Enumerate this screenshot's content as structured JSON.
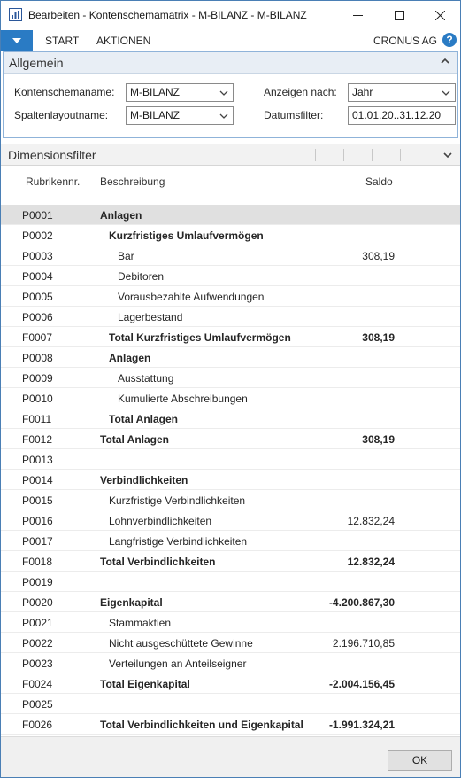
{
  "window": {
    "title": "Bearbeiten - Kontenschemamatrix - M-BILANZ - M-BILANZ"
  },
  "ribbon": {
    "tabs": [
      "START",
      "AKTIONEN"
    ],
    "company": "CRONUS AG",
    "help": "?"
  },
  "general": {
    "title": "Allgemein",
    "schema_label": "Kontenschemaname:",
    "schema_value": "M-BILANZ",
    "layout_label": "Spaltenlayoutname:",
    "layout_value": "M-BILANZ",
    "view_by_label": "Anzeigen nach:",
    "view_by_value": "Jahr",
    "date_filter_label": "Datumsfilter:",
    "date_filter_value": "01.01.20..31.12.20"
  },
  "dimension": {
    "title": "Dimensionsfilter"
  },
  "grid": {
    "headers": {
      "code": "Rubrikennr.",
      "desc": "Beschreibung",
      "amount": "Saldo"
    },
    "rows": [
      {
        "code": "P0001",
        "desc": "Anlagen",
        "amount": "",
        "indent": 0,
        "bold": true
      },
      {
        "code": "P0002",
        "desc": "Kurzfristiges Umlaufvermögen",
        "amount": "",
        "indent": 1,
        "bold": true
      },
      {
        "code": "P0003",
        "desc": "Bar",
        "amount": "308,19",
        "indent": 2,
        "bold": false
      },
      {
        "code": "P0004",
        "desc": "Debitoren",
        "amount": "",
        "indent": 2,
        "bold": false
      },
      {
        "code": "P0005",
        "desc": "Vorausbezahlte Aufwendungen",
        "amount": "",
        "indent": 2,
        "bold": false
      },
      {
        "code": "P0006",
        "desc": "Lagerbestand",
        "amount": "",
        "indent": 2,
        "bold": false
      },
      {
        "code": "F0007",
        "desc": "Total Kurzfristiges Umlaufvermögen",
        "amount": "308,19",
        "indent": 1,
        "bold": true
      },
      {
        "code": "P0008",
        "desc": "Anlagen",
        "amount": "",
        "indent": 1,
        "bold": true
      },
      {
        "code": "P0009",
        "desc": "Ausstattung",
        "amount": "",
        "indent": 2,
        "bold": false
      },
      {
        "code": "P0010",
        "desc": "Kumulierte Abschreibungen",
        "amount": "",
        "indent": 2,
        "bold": false
      },
      {
        "code": "F0011",
        "desc": "Total Anlagen",
        "amount": "",
        "indent": 1,
        "bold": true
      },
      {
        "code": "F0012",
        "desc": "Total Anlagen",
        "amount": "308,19",
        "indent": 0,
        "bold": true
      },
      {
        "code": "P0013",
        "desc": "",
        "amount": "",
        "indent": 0,
        "bold": false
      },
      {
        "code": "P0014",
        "desc": "Verbindlichkeiten",
        "amount": "",
        "indent": 0,
        "bold": true
      },
      {
        "code": "P0015",
        "desc": "Kurzfristige Verbindlichkeiten",
        "amount": "",
        "indent": 1,
        "bold": false
      },
      {
        "code": "P0016",
        "desc": "Lohnverbindlichkeiten",
        "amount": "12.832,24",
        "indent": 1,
        "bold": false
      },
      {
        "code": "P0017",
        "desc": "Langfristige Verbindlichkeiten",
        "amount": "",
        "indent": 1,
        "bold": false
      },
      {
        "code": "F0018",
        "desc": "Total Verbindlichkeiten",
        "amount": "12.832,24",
        "indent": 0,
        "bold": true
      },
      {
        "code": "P0019",
        "desc": "",
        "amount": "",
        "indent": 0,
        "bold": false
      },
      {
        "code": "P0020",
        "desc": "Eigenkapital",
        "amount": "-4.200.867,30",
        "indent": 0,
        "bold": true
      },
      {
        "code": "P0021",
        "desc": "Stammaktien",
        "amount": "",
        "indent": 1,
        "bold": false
      },
      {
        "code": "P0022",
        "desc": "Nicht ausgeschüttete Gewinne",
        "amount": "2.196.710,85",
        "indent": 1,
        "bold": false
      },
      {
        "code": "P0023",
        "desc": "Verteilungen an Anteilseigner",
        "amount": "",
        "indent": 1,
        "bold": false
      },
      {
        "code": "F0024",
        "desc": "Total Eigenkapital",
        "amount": "-2.004.156,45",
        "indent": 0,
        "bold": true
      },
      {
        "code": "P0025",
        "desc": "",
        "amount": "",
        "indent": 0,
        "bold": false
      },
      {
        "code": "F0026",
        "desc": "Total Verbindlichkeiten und Eigenkapital",
        "amount": "-1.991.324,21",
        "indent": 0,
        "bold": true
      }
    ]
  },
  "footer": {
    "ok_label": "OK"
  }
}
